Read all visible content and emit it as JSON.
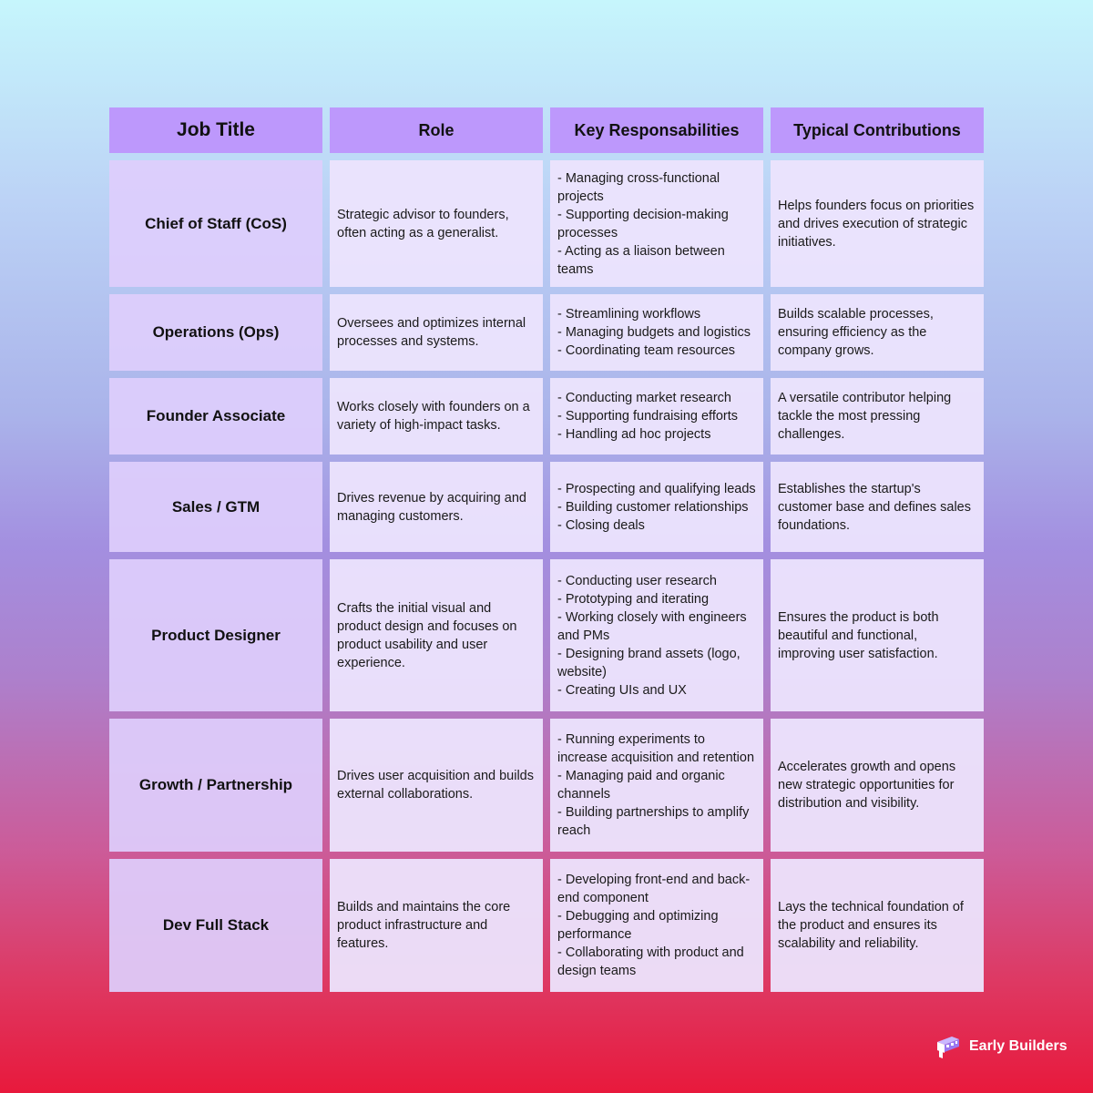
{
  "table": {
    "headers": [
      "Job Title",
      "Role",
      "Key Responsabilities",
      "Typical Contributions"
    ],
    "rows": [
      {
        "title": "Chief of Staff (CoS)",
        "role": "Strategic advisor to founders, often acting as a generalist.",
        "responsibilities": "- Managing cross-functional projects\n- Supporting decision-making processes\n- Acting as a liaison between teams",
        "contributions": "Helps founders focus on priorities and drives execution of strategic initiatives."
      },
      {
        "title": "Operations (Ops)",
        "role": "Oversees and optimizes internal processes and systems.",
        "responsibilities": "- Streamlining workflows\n- Managing budgets and logistics\n- Coordinating team resources",
        "contributions": "Builds scalable processes, ensuring efficiency as the company grows."
      },
      {
        "title": "Founder Associate",
        "role": "Works closely with founders on a variety of high-impact tasks.",
        "responsibilities": "- Conducting market research\n- Supporting fundraising efforts\n- Handling ad hoc projects",
        "contributions": "A versatile contributor helping tackle the most pressing challenges."
      },
      {
        "title": "Sales / GTM",
        "role": "Drives revenue by acquiring and managing customers.",
        "responsibilities": "- Prospecting and qualifying leads\n- Building customer relationships\n- Closing deals",
        "contributions": "Establishes the startup's customer base and defines sales foundations."
      },
      {
        "title": "Product Designer",
        "role": "Crafts the initial visual and product design and focuses on product usability and user experience.",
        "responsibilities": "- Conducting user research\n- Prototyping and iterating\n- Working closely with engineers and PMs\n- Designing brand assets (logo, website)\n- Creating UIs and UX",
        "contributions": "Ensures the product is both beautiful and functional, improving user satisfaction."
      },
      {
        "title": "Growth / Partnership",
        "role": "Drives user acquisition and builds external collaborations.",
        "responsibilities": "- Running experiments to increase acquisition and retention\n- Managing paid and organic channels\n- Building partnerships to amplify reach",
        "contributions": "Accelerates growth and opens new strategic opportunities for distribution and visibility."
      },
      {
        "title": "Dev Full Stack",
        "role": "Builds and maintains the core product infrastructure and features.",
        "responsibilities": "- Developing front-end and back-end component\n- Debugging and optimizing performance\n- Collaborating with product and design teams",
        "contributions": "Lays the technical foundation of the product and ensures its scalability and reliability."
      }
    ]
  },
  "brand": {
    "name": "Early Builders",
    "logo_icon": "blocks-logo-icon"
  },
  "colors": {
    "header_bg": "#bd98fc",
    "title_cell_bg": "#decdfc",
    "cell_bg": "#ece4fd",
    "gradient_top": "#c6f6fc",
    "gradient_bottom": "#e8193c"
  }
}
